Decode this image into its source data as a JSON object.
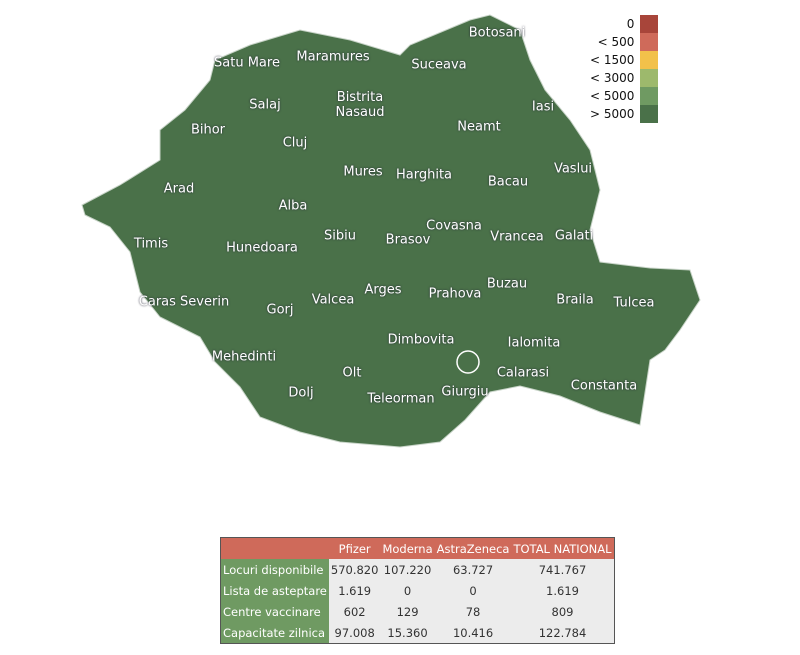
{
  "legend": [
    {
      "label": "0",
      "color": "#a8453a"
    },
    {
      "label": "< 500",
      "color": "#cf6a5a"
    },
    {
      "label": "< 1500",
      "color": "#f2c14a"
    },
    {
      "label": "< 3000",
      "color": "#9db96c"
    },
    {
      "label": "< 5000",
      "color": "#6f9a62"
    },
    {
      "label": "> 5000",
      "color": "#4a7149"
    }
  ],
  "counties": [
    "Botosani",
    "Satu Mare",
    "Maramures",
    "Suceava",
    "Salaj",
    "Bistrita Nasaud",
    "Iasi",
    "Bihor",
    "Cluj",
    "Neamt",
    "Vaslui",
    "Arad",
    "Mures",
    "Harghita",
    "Bacau",
    "Alba",
    "Timis",
    "Hunedoara",
    "Sibiu",
    "Brasov",
    "Covasna",
    "Vrancea",
    "Galati",
    "Caras Severin",
    "Gorj",
    "Valcea",
    "Arges",
    "Prahova",
    "Buzau",
    "Braila",
    "Tulcea",
    "Mehedinti",
    "Dimbovita",
    "Ialomita",
    "Calarasi",
    "Constanta",
    "Dolj",
    "Olt",
    "Giurgiu",
    "Teleorman"
  ],
  "table": {
    "columns": [
      "Pfizer",
      "Moderna",
      "AstraZeneca",
      "TOTAL NATIONAL"
    ],
    "rows": [
      {
        "label": "Locuri disponibile",
        "cells": [
          "570.820",
          "107.220",
          "63.727",
          "741.767"
        ]
      },
      {
        "label": "Lista de asteptare",
        "cells": [
          "1.619",
          "0",
          "0",
          "1.619"
        ]
      },
      {
        "label": "Centre vaccinare",
        "cells": [
          "602",
          "129",
          "78",
          "809"
        ]
      },
      {
        "label": "Capacitate zilnica",
        "cells": [
          "97.008",
          "15.360",
          "10.416",
          "122.784"
        ]
      }
    ]
  }
}
